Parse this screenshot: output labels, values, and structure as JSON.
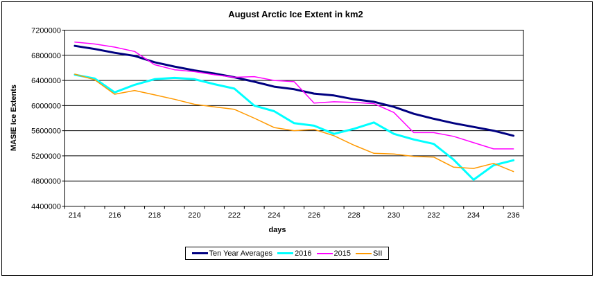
{
  "chart_data": {
    "type": "line",
    "title": "August Arctic Ice Extent in km2",
    "xlabel": "days",
    "ylabel": "MASIE Ice Extents",
    "x": [
      214,
      215,
      216,
      217,
      218,
      219,
      220,
      221,
      222,
      223,
      224,
      225,
      226,
      227,
      228,
      229,
      230,
      231,
      232,
      233,
      234,
      235,
      236
    ],
    "x_tick_labels": [
      "214",
      "216",
      "218",
      "220",
      "222",
      "224",
      "226",
      "228",
      "230",
      "232",
      "234",
      "236"
    ],
    "y_tick_labels": [
      "7200000",
      "6800000",
      "6400000",
      "6000000",
      "5600000",
      "5200000",
      "4800000",
      "4400000"
    ],
    "ylim": [
      4400000,
      7200000
    ],
    "y_tick_step": 400000,
    "grid": "horizontal-only",
    "legend_position": "bottom-center",
    "axis_color": "#000000",
    "background_color": "#ffffff",
    "series": [
      {
        "name": "Ten Year Averages",
        "color": "#000080",
        "width": 3,
        "values": [
          6950000,
          6900000,
          6840000,
          6790000,
          6690000,
          6620000,
          6560000,
          6510000,
          6450000,
          6380000,
          6300000,
          6260000,
          6190000,
          6160000,
          6100000,
          6060000,
          5980000,
          5870000,
          5790000,
          5720000,
          5660000,
          5600000,
          5520000
        ]
      },
      {
        "name": "2016",
        "color": "#00FFFF",
        "width": 3,
        "values": [
          6490000,
          6430000,
          6210000,
          6330000,
          6420000,
          6440000,
          6420000,
          6340000,
          6270000,
          6000000,
          5910000,
          5720000,
          5680000,
          5550000,
          5630000,
          5730000,
          5550000,
          5460000,
          5390000,
          5140000,
          4820000,
          5050000,
          5130000
        ]
      },
      {
        "name": "2015",
        "color": "#FF00FF",
        "width": 1.5,
        "values": [
          7010000,
          6980000,
          6930000,
          6860000,
          6650000,
          6570000,
          6540000,
          6490000,
          6450000,
          6460000,
          6400000,
          6380000,
          6040000,
          6060000,
          6050000,
          6030000,
          5890000,
          5570000,
          5570000,
          5510000,
          5410000,
          5310000,
          5310000
        ]
      },
      {
        "name": "SII",
        "color": "#FF9900",
        "width": 1.5,
        "values": [
          6500000,
          6410000,
          6180000,
          6240000,
          6170000,
          6100000,
          6020000,
          5980000,
          5940000,
          5800000,
          5650000,
          5600000,
          5620000,
          5520000,
          5370000,
          5240000,
          5230000,
          5190000,
          5180000,
          5020000,
          5000000,
          5080000,
          4950000
        ]
      }
    ]
  }
}
